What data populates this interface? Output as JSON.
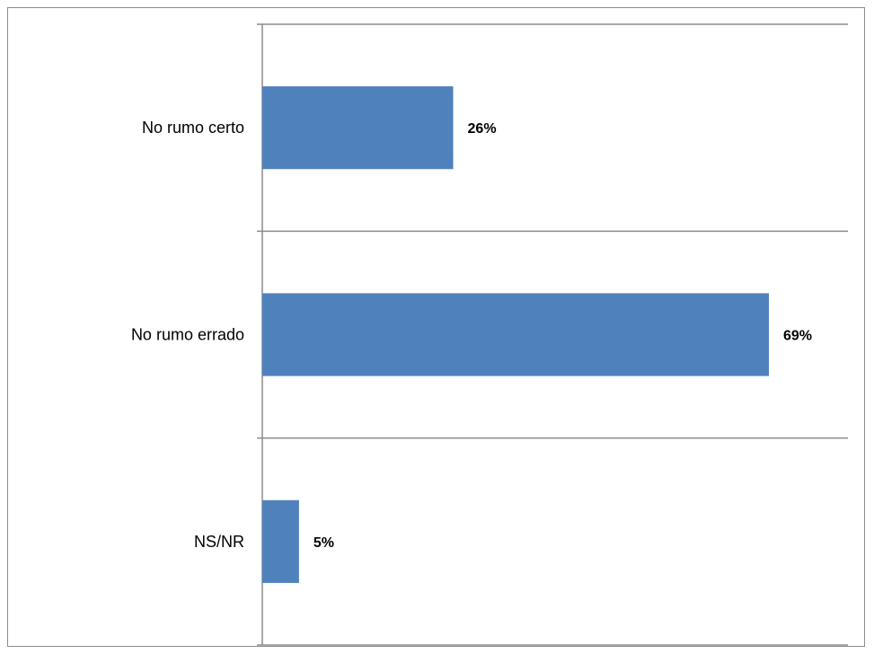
{
  "chart_data": {
    "type": "bar",
    "orientation": "horizontal",
    "categories": [
      "No rumo certo",
      "No rumo errado",
      "NS/NR"
    ],
    "values": [
      26,
      69,
      5
    ],
    "value_labels": [
      "26%",
      "69%",
      "5%"
    ],
    "unit": "%",
    "xlim": [
      0,
      80
    ],
    "grid": true,
    "legend": false,
    "colors": {
      "bar": "#4f81bd",
      "grid": "#8c8c8c",
      "frame": "#8c8c8c"
    }
  }
}
